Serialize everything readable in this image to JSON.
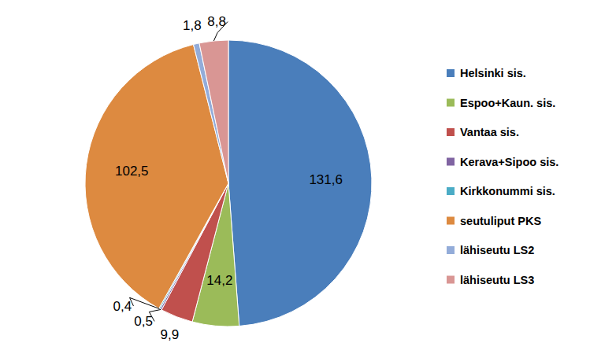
{
  "chart_data": {
    "type": "pie",
    "categories": [
      "Helsinki sis.",
      "Espoo+Kaun. sis.",
      "Vantaa sis.",
      "Kerava+Sipoo sis.",
      "Kirkkonummi sis.",
      "seutuliput PKS",
      "lähiseutu LS2",
      "lähiseutu LS3"
    ],
    "values": [
      131.6,
      14.2,
      9.9,
      0.5,
      0.4,
      102.5,
      1.8,
      8.8
    ],
    "value_labels": [
      "131,6",
      "14,2",
      "9,9",
      "0,5",
      "0,4",
      "102,5",
      "1,8",
      "8,8"
    ],
    "colors": [
      "#4A7EBB",
      "#9BBB59",
      "#C0504D",
      "#8064A2",
      "#4BACC6",
      "#DD8A40",
      "#93ACD9",
      "#D99694"
    ],
    "data_labels": true,
    "legend": "right"
  }
}
